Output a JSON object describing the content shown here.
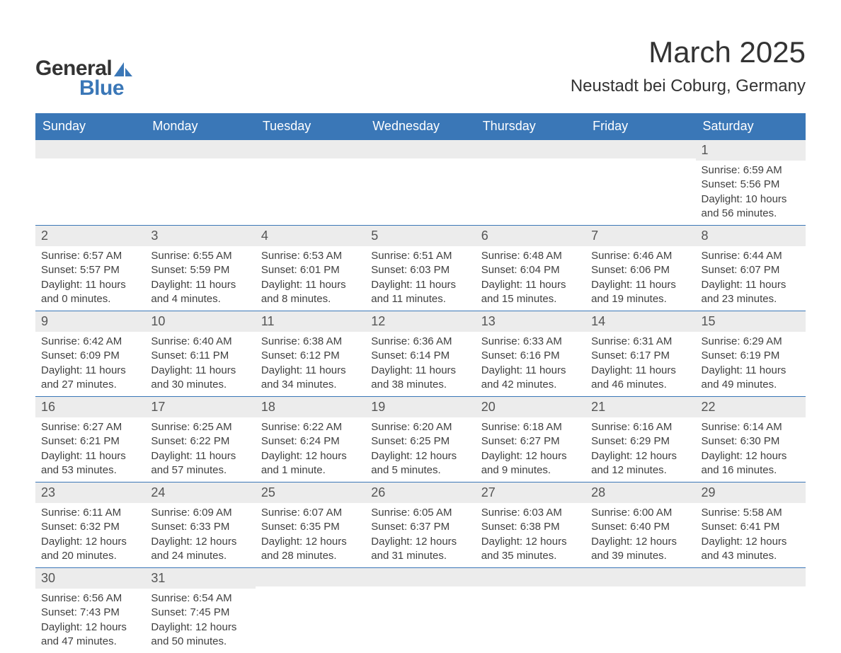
{
  "logo": {
    "text1": "General",
    "text2": "Blue",
    "sail_color": "#3a77b7"
  },
  "title": "March 2025",
  "location": "Neustadt bei Coburg, Germany",
  "colors": {
    "header_bg": "#3a77b7",
    "header_text": "#ffffff",
    "daynum_bg": "#ececec",
    "body_text": "#404040",
    "row_border": "#3a77b7",
    "page_bg": "#ffffff"
  },
  "day_headers": [
    "Sunday",
    "Monday",
    "Tuesday",
    "Wednesday",
    "Thursday",
    "Friday",
    "Saturday"
  ],
  "weeks": [
    [
      {
        "n": "",
        "sr": "",
        "ss": "",
        "dl": ""
      },
      {
        "n": "",
        "sr": "",
        "ss": "",
        "dl": ""
      },
      {
        "n": "",
        "sr": "",
        "ss": "",
        "dl": ""
      },
      {
        "n": "",
        "sr": "",
        "ss": "",
        "dl": ""
      },
      {
        "n": "",
        "sr": "",
        "ss": "",
        "dl": ""
      },
      {
        "n": "",
        "sr": "",
        "ss": "",
        "dl": ""
      },
      {
        "n": "1",
        "sr": "Sunrise: 6:59 AM",
        "ss": "Sunset: 5:56 PM",
        "dl": "Daylight: 10 hours and 56 minutes."
      }
    ],
    [
      {
        "n": "2",
        "sr": "Sunrise: 6:57 AM",
        "ss": "Sunset: 5:57 PM",
        "dl": "Daylight: 11 hours and 0 minutes."
      },
      {
        "n": "3",
        "sr": "Sunrise: 6:55 AM",
        "ss": "Sunset: 5:59 PM",
        "dl": "Daylight: 11 hours and 4 minutes."
      },
      {
        "n": "4",
        "sr": "Sunrise: 6:53 AM",
        "ss": "Sunset: 6:01 PM",
        "dl": "Daylight: 11 hours and 8 minutes."
      },
      {
        "n": "5",
        "sr": "Sunrise: 6:51 AM",
        "ss": "Sunset: 6:03 PM",
        "dl": "Daylight: 11 hours and 11 minutes."
      },
      {
        "n": "6",
        "sr": "Sunrise: 6:48 AM",
        "ss": "Sunset: 6:04 PM",
        "dl": "Daylight: 11 hours and 15 minutes."
      },
      {
        "n": "7",
        "sr": "Sunrise: 6:46 AM",
        "ss": "Sunset: 6:06 PM",
        "dl": "Daylight: 11 hours and 19 minutes."
      },
      {
        "n": "8",
        "sr": "Sunrise: 6:44 AM",
        "ss": "Sunset: 6:07 PM",
        "dl": "Daylight: 11 hours and 23 minutes."
      }
    ],
    [
      {
        "n": "9",
        "sr": "Sunrise: 6:42 AM",
        "ss": "Sunset: 6:09 PM",
        "dl": "Daylight: 11 hours and 27 minutes."
      },
      {
        "n": "10",
        "sr": "Sunrise: 6:40 AM",
        "ss": "Sunset: 6:11 PM",
        "dl": "Daylight: 11 hours and 30 minutes."
      },
      {
        "n": "11",
        "sr": "Sunrise: 6:38 AM",
        "ss": "Sunset: 6:12 PM",
        "dl": "Daylight: 11 hours and 34 minutes."
      },
      {
        "n": "12",
        "sr": "Sunrise: 6:36 AM",
        "ss": "Sunset: 6:14 PM",
        "dl": "Daylight: 11 hours and 38 minutes."
      },
      {
        "n": "13",
        "sr": "Sunrise: 6:33 AM",
        "ss": "Sunset: 6:16 PM",
        "dl": "Daylight: 11 hours and 42 minutes."
      },
      {
        "n": "14",
        "sr": "Sunrise: 6:31 AM",
        "ss": "Sunset: 6:17 PM",
        "dl": "Daylight: 11 hours and 46 minutes."
      },
      {
        "n": "15",
        "sr": "Sunrise: 6:29 AM",
        "ss": "Sunset: 6:19 PM",
        "dl": "Daylight: 11 hours and 49 minutes."
      }
    ],
    [
      {
        "n": "16",
        "sr": "Sunrise: 6:27 AM",
        "ss": "Sunset: 6:21 PM",
        "dl": "Daylight: 11 hours and 53 minutes."
      },
      {
        "n": "17",
        "sr": "Sunrise: 6:25 AM",
        "ss": "Sunset: 6:22 PM",
        "dl": "Daylight: 11 hours and 57 minutes."
      },
      {
        "n": "18",
        "sr": "Sunrise: 6:22 AM",
        "ss": "Sunset: 6:24 PM",
        "dl": "Daylight: 12 hours and 1 minute."
      },
      {
        "n": "19",
        "sr": "Sunrise: 6:20 AM",
        "ss": "Sunset: 6:25 PM",
        "dl": "Daylight: 12 hours and 5 minutes."
      },
      {
        "n": "20",
        "sr": "Sunrise: 6:18 AM",
        "ss": "Sunset: 6:27 PM",
        "dl": "Daylight: 12 hours and 9 minutes."
      },
      {
        "n": "21",
        "sr": "Sunrise: 6:16 AM",
        "ss": "Sunset: 6:29 PM",
        "dl": "Daylight: 12 hours and 12 minutes."
      },
      {
        "n": "22",
        "sr": "Sunrise: 6:14 AM",
        "ss": "Sunset: 6:30 PM",
        "dl": "Daylight: 12 hours and 16 minutes."
      }
    ],
    [
      {
        "n": "23",
        "sr": "Sunrise: 6:11 AM",
        "ss": "Sunset: 6:32 PM",
        "dl": "Daylight: 12 hours and 20 minutes."
      },
      {
        "n": "24",
        "sr": "Sunrise: 6:09 AM",
        "ss": "Sunset: 6:33 PM",
        "dl": "Daylight: 12 hours and 24 minutes."
      },
      {
        "n": "25",
        "sr": "Sunrise: 6:07 AM",
        "ss": "Sunset: 6:35 PM",
        "dl": "Daylight: 12 hours and 28 minutes."
      },
      {
        "n": "26",
        "sr": "Sunrise: 6:05 AM",
        "ss": "Sunset: 6:37 PM",
        "dl": "Daylight: 12 hours and 31 minutes."
      },
      {
        "n": "27",
        "sr": "Sunrise: 6:03 AM",
        "ss": "Sunset: 6:38 PM",
        "dl": "Daylight: 12 hours and 35 minutes."
      },
      {
        "n": "28",
        "sr": "Sunrise: 6:00 AM",
        "ss": "Sunset: 6:40 PM",
        "dl": "Daylight: 12 hours and 39 minutes."
      },
      {
        "n": "29",
        "sr": "Sunrise: 5:58 AM",
        "ss": "Sunset: 6:41 PM",
        "dl": "Daylight: 12 hours and 43 minutes."
      }
    ],
    [
      {
        "n": "30",
        "sr": "Sunrise: 6:56 AM",
        "ss": "Sunset: 7:43 PM",
        "dl": "Daylight: 12 hours and 47 minutes."
      },
      {
        "n": "31",
        "sr": "Sunrise: 6:54 AM",
        "ss": "Sunset: 7:45 PM",
        "dl": "Daylight: 12 hours and 50 minutes."
      },
      {
        "n": "",
        "sr": "",
        "ss": "",
        "dl": ""
      },
      {
        "n": "",
        "sr": "",
        "ss": "",
        "dl": ""
      },
      {
        "n": "",
        "sr": "",
        "ss": "",
        "dl": ""
      },
      {
        "n": "",
        "sr": "",
        "ss": "",
        "dl": ""
      },
      {
        "n": "",
        "sr": "",
        "ss": "",
        "dl": ""
      }
    ]
  ]
}
